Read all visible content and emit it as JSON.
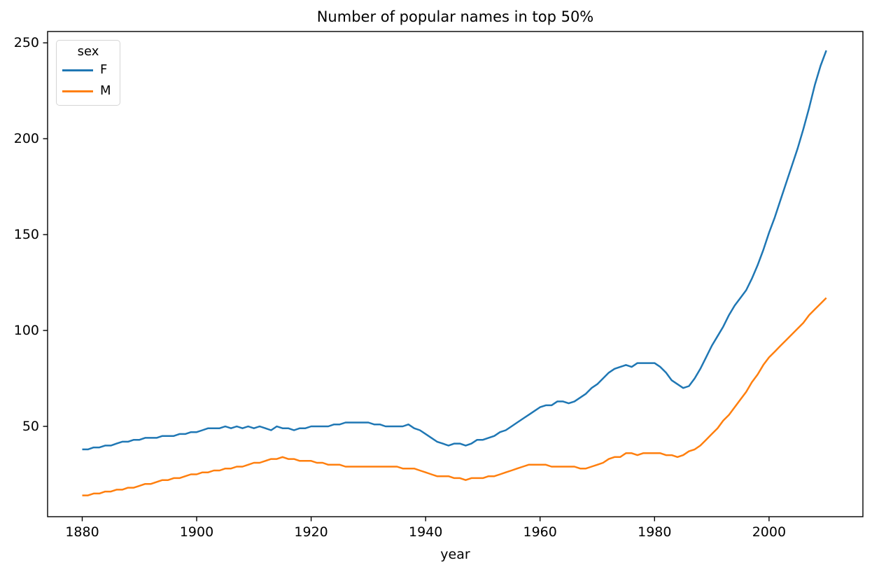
{
  "chart_data": {
    "type": "line",
    "title": "Number of popular names in top 50%",
    "xlabel": "year",
    "ylabel": "",
    "grid": false,
    "background": "#ffffff",
    "spine_color": "#000000",
    "xlim": [
      1873.95,
      2016.4
    ],
    "ylim": [
      2.9,
      255.9
    ],
    "xticks": [
      1880,
      1900,
      1920,
      1940,
      1960,
      1980,
      2000
    ],
    "yticks": [
      50,
      100,
      150,
      200,
      250
    ],
    "legend": {
      "title": "sex",
      "position": "upper left"
    },
    "x": [
      1880,
      1881,
      1882,
      1883,
      1884,
      1885,
      1886,
      1887,
      1888,
      1889,
      1890,
      1891,
      1892,
      1893,
      1894,
      1895,
      1896,
      1897,
      1898,
      1899,
      1900,
      1901,
      1902,
      1903,
      1904,
      1905,
      1906,
      1907,
      1908,
      1909,
      1910,
      1911,
      1912,
      1913,
      1914,
      1915,
      1916,
      1917,
      1918,
      1919,
      1920,
      1921,
      1922,
      1923,
      1924,
      1925,
      1926,
      1927,
      1928,
      1929,
      1930,
      1931,
      1932,
      1933,
      1934,
      1935,
      1936,
      1937,
      1938,
      1939,
      1940,
      1941,
      1942,
      1943,
      1944,
      1945,
      1946,
      1947,
      1948,
      1949,
      1950,
      1951,
      1952,
      1953,
      1954,
      1955,
      1956,
      1957,
      1958,
      1959,
      1960,
      1961,
      1962,
      1963,
      1964,
      1965,
      1966,
      1967,
      1968,
      1969,
      1970,
      1971,
      1972,
      1973,
      1974,
      1975,
      1976,
      1977,
      1978,
      1979,
      1980,
      1981,
      1982,
      1983,
      1984,
      1985,
      1986,
      1987,
      1988,
      1989,
      1990,
      1991,
      1992,
      1993,
      1994,
      1995,
      1996,
      1997,
      1998,
      1999,
      2000,
      2001,
      2002,
      2003,
      2004,
      2005,
      2006,
      2007,
      2008,
      2009,
      2010
    ],
    "series": [
      {
        "name": "F",
        "color": "#1f77b4",
        "values": [
          38,
          38,
          39,
          39,
          40,
          40,
          41,
          42,
          42,
          43,
          43,
          44,
          44,
          44,
          45,
          45,
          45,
          46,
          46,
          47,
          47,
          48,
          49,
          49,
          49,
          50,
          49,
          50,
          49,
          50,
          49,
          50,
          49,
          48,
          50,
          49,
          49,
          48,
          49,
          49,
          50,
          50,
          50,
          50,
          51,
          51,
          52,
          52,
          52,
          52,
          52,
          51,
          51,
          50,
          50,
          50,
          50,
          51,
          49,
          48,
          46,
          44,
          42,
          41,
          40,
          41,
          41,
          40,
          41,
          43,
          43,
          44,
          45,
          47,
          48,
          50,
          52,
          54,
          56,
          58,
          60,
          61,
          61,
          63,
          63,
          62,
          63,
          65,
          67,
          70,
          72,
          75,
          78,
          80,
          81,
          82,
          81,
          83,
          83,
          83,
          83,
          81,
          78,
          74,
          72,
          70,
          71,
          75,
          80,
          86,
          92,
          97,
          102,
          108,
          113,
          117,
          121,
          127,
          134,
          142,
          151,
          159,
          168,
          177,
          186,
          195,
          205,
          216,
          228,
          238,
          246
        ]
      },
      {
        "name": "M",
        "color": "#ff7f0e",
        "values": [
          14,
          14,
          15,
          15,
          16,
          16,
          17,
          17,
          18,
          18,
          19,
          20,
          20,
          21,
          22,
          22,
          23,
          23,
          24,
          25,
          25,
          26,
          26,
          27,
          27,
          28,
          28,
          29,
          29,
          30,
          31,
          31,
          32,
          33,
          33,
          34,
          33,
          33,
          32,
          32,
          32,
          31,
          31,
          30,
          30,
          30,
          29,
          29,
          29,
          29,
          29,
          29,
          29,
          29,
          29,
          29,
          28,
          28,
          28,
          27,
          26,
          25,
          24,
          24,
          24,
          23,
          23,
          22,
          23,
          23,
          23,
          24,
          24,
          25,
          26,
          27,
          28,
          29,
          30,
          30,
          30,
          30,
          29,
          29,
          29,
          29,
          29,
          28,
          28,
          29,
          30,
          31,
          33,
          34,
          34,
          36,
          36,
          35,
          36,
          36,
          36,
          36,
          35,
          35,
          34,
          35,
          37,
          38,
          40,
          43,
          46,
          49,
          53,
          56,
          60,
          64,
          68,
          73,
          77,
          82,
          86,
          89,
          92,
          95,
          98,
          101,
          104,
          108,
          111,
          114,
          117
        ]
      }
    ]
  }
}
